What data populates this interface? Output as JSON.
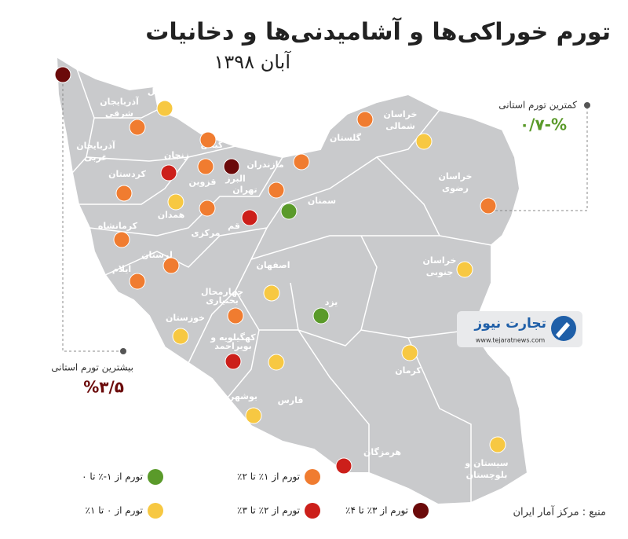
{
  "header": {
    "title": "تورم خوراکی‌ها و آشامیدنی‌ها و دخانیات",
    "subtitle": "آبان ۱۳۹۸"
  },
  "annotations": [
    {
      "label": "کمترین تورم استانی",
      "value": "%-۰/۷",
      "color": "#5a9a2a"
    },
    {
      "label": "بیشترین تورم استانی",
      "value": "%۳/۵",
      "color": "#6b0a0a"
    }
  ],
  "legend": [
    {
      "label": "تورم از ۱-٪ تا ۰",
      "color": "#5a9a2a"
    },
    {
      "label": "تورم از ۱٪ تا ۲٪",
      "color": "#f07c30"
    },
    {
      "label": "تورم از ۰ تا ۱٪",
      "color": "#f7c842"
    },
    {
      "label": "تورم از ۲٪ تا ۳٪",
      "color": "#cc1f1a"
    },
    {
      "label": "تورم از ۳٪ تا ۴٪",
      "color": "#6b0a0a"
    }
  ],
  "provinces": [
    {
      "label": [
        "اردبیل"
      ],
      "level": 2
    },
    {
      "label": [
        "آذربایجان",
        "شرقی"
      ],
      "level": 1
    },
    {
      "label": [
        "آذربایجان",
        "غربی"
      ],
      "level": 4
    },
    {
      "label": [
        "گیلان"
      ],
      "level": 1
    },
    {
      "label": [
        "زنجان"
      ],
      "level": 3
    },
    {
      "label": [
        "قزوین"
      ],
      "level": 1
    },
    {
      "label": [
        "البرز"
      ],
      "level": 4
    },
    {
      "label": [
        "تهران"
      ],
      "level": 1
    },
    {
      "label": [
        "مازندران"
      ],
      "level": 1
    },
    {
      "label": [
        "گلستان"
      ],
      "level": 1
    },
    {
      "label": [
        "خراسان",
        "شمالی"
      ],
      "level": 2
    },
    {
      "label": [
        "خراسان",
        "رضوی"
      ],
      "level": 1
    },
    {
      "label": [
        "سمنان"
      ],
      "level": 0
    },
    {
      "label": [
        "قم"
      ],
      "level": 3
    },
    {
      "label": [
        "مرکزی"
      ],
      "level": 1
    },
    {
      "label": [
        "همدان"
      ],
      "level": 2
    },
    {
      "label": [
        "کردستان"
      ],
      "level": 1
    },
    {
      "label": [
        "کرمانشاه"
      ],
      "level": 1
    },
    {
      "label": [
        "لرستان"
      ],
      "level": 1
    },
    {
      "label": [
        "ایلام"
      ],
      "level": 1
    },
    {
      "label": [
        "اصفهان"
      ],
      "level": 2
    },
    {
      "label": [
        "چهارمحال",
        "بختیاری"
      ],
      "level": 1
    },
    {
      "label": [
        "خوزستان"
      ],
      "level": 2
    },
    {
      "label": [
        "کهگیلویه و",
        "بویراحمد"
      ],
      "level": 3
    },
    {
      "label": [
        "یزد"
      ],
      "level": 0
    },
    {
      "label": [
        "خراسان",
        "جنوبی"
      ],
      "level": 2
    },
    {
      "label": [
        "فارس"
      ],
      "level": 2
    },
    {
      "label": [
        "بوشهر"
      ],
      "level": 2
    },
    {
      "label": [
        "کرمان"
      ],
      "level": 2
    },
    {
      "label": [
        "هرمزگان"
      ],
      "level": 3
    },
    {
      "label": [
        "سیستان و",
        "بلوچستان"
      ],
      "level": 2
    }
  ],
  "source": "منبع : مرکز آمار ایران",
  "logo": {
    "name": "تجارت نیوز",
    "url": "www.tejaratnews.com"
  }
}
